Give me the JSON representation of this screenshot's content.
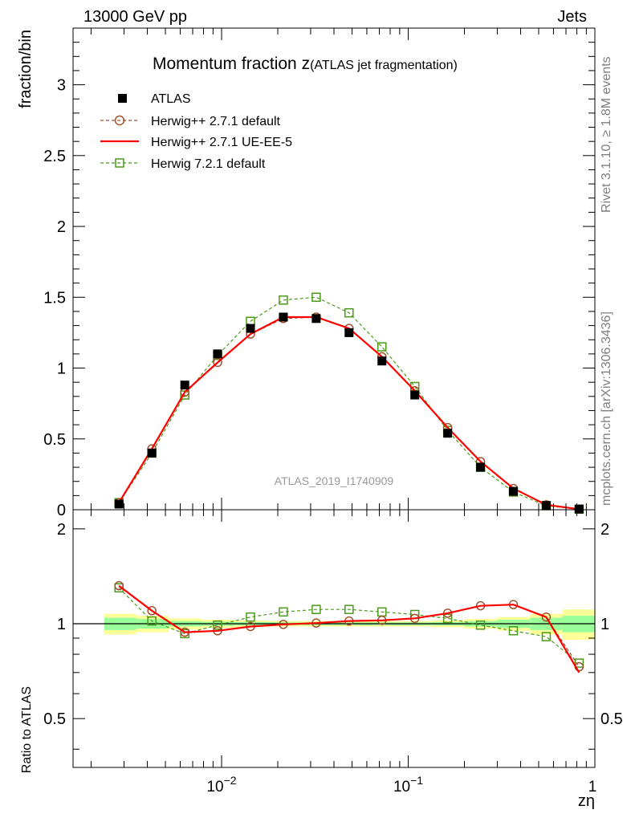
{
  "header": {
    "left": "13000 GeV pp",
    "right": "Jets"
  },
  "side_labels": {
    "rivet": "Rivet 3.1.10, ≥ 1.8M events",
    "mcplots": "mcplots.cern.ch [arXiv:1306.3436]"
  },
  "chart_data": {
    "type": "scatter",
    "title_main": "Momentum fraction ",
    "title_var": "z",
    "title_sub": "(ATLAS jet fragmentation)",
    "analysis_label": "ATLAS_2019_I1740909",
    "xlabel": "zη",
    "ylabel_main": "fraction/bin",
    "ylabel_ratio": "Ratio to ATLAS",
    "xscale": "log",
    "xlim": [
      0.0016,
      1.0
    ],
    "ylim_main": [
      0,
      3.4
    ],
    "ylim_ratio": [
      0.35,
      2.3
    ],
    "main_yticks": [
      {
        "v": 0,
        "label": "0"
      },
      {
        "v": 0.5,
        "label": "0.5"
      },
      {
        "v": 1,
        "label": "1"
      },
      {
        "v": 1.5,
        "label": "1.5"
      },
      {
        "v": 2,
        "label": "2"
      },
      {
        "v": 2.5,
        "label": "2.5"
      },
      {
        "v": 3,
        "label": "3"
      }
    ],
    "ratio_yticks": [
      {
        "v": 0.5,
        "label": "0.5"
      },
      {
        "v": 1,
        "label": "1"
      },
      {
        "v": 2,
        "label": "2"
      }
    ],
    "xticks": [
      {
        "v": 0.01,
        "base": "10",
        "exp": "−2"
      },
      {
        "v": 0.1,
        "base": "10",
        "exp": "−1"
      },
      {
        "v": 1,
        "base": "1",
        "exp": ""
      }
    ],
    "x": [
      0.00282,
      0.00423,
      0.00635,
      0.00952,
      0.01428,
      0.02142,
      0.03213,
      0.04819,
      0.07229,
      0.10843,
      0.16265,
      0.24397,
      0.36596,
      0.54894,
      0.82341
    ],
    "bin_edges": [
      0.00235,
      0.0035,
      0.0052,
      0.0078,
      0.0117,
      0.0175,
      0.0263,
      0.0395,
      0.0592,
      0.0888,
      0.133,
      0.2,
      0.3,
      0.45,
      0.67,
      1.0
    ],
    "band_inner_half": [
      0.045,
      0.035,
      0.02,
      0.015,
      0.012,
      0.01,
      0.01,
      0.01,
      0.01,
      0.01,
      0.012,
      0.02,
      0.03,
      0.045,
      0.06
    ],
    "band_outer_half": [
      0.075,
      0.06,
      0.04,
      0.03,
      0.025,
      0.02,
      0.02,
      0.02,
      0.02,
      0.02,
      0.025,
      0.035,
      0.05,
      0.075,
      0.11
    ],
    "series": [
      {
        "name": "ATLAS",
        "color": "#000000",
        "marker": "filled-square",
        "line": "none",
        "values": [
          0.04,
          0.4,
          0.88,
          1.1,
          1.28,
          1.36,
          1.35,
          1.25,
          1.05,
          0.81,
          0.54,
          0.3,
          0.13,
          0.03,
          0.005
        ]
      },
      {
        "name": "Herwig++ 2.7.1 default",
        "color": "#a0522d",
        "marker": "open-circle",
        "line": "dashed",
        "values": [
          0.05,
          0.43,
          0.83,
          1.04,
          1.24,
          1.35,
          1.36,
          1.28,
          1.08,
          0.84,
          0.58,
          0.34,
          0.15,
          0.035,
          0.004
        ],
        "ratio": [
          1.32,
          1.1,
          0.94,
          0.95,
          0.98,
          0.995,
          1.005,
          1.02,
          1.025,
          1.04,
          1.08,
          1.14,
          1.15,
          1.05,
          0.73
        ]
      },
      {
        "name": "Herwig++ 2.7.1 UE-EE-5",
        "color": "#ff0000",
        "marker": "none",
        "line": "solid",
        "values": [
          0.05,
          0.43,
          0.83,
          1.04,
          1.24,
          1.36,
          1.36,
          1.28,
          1.08,
          0.84,
          0.58,
          0.34,
          0.15,
          0.035,
          0.004
        ],
        "ratio": [
          1.32,
          1.1,
          0.94,
          0.95,
          0.98,
          0.995,
          1.005,
          1.02,
          1.025,
          1.04,
          1.08,
          1.14,
          1.15,
          1.05,
          0.7
        ]
      },
      {
        "name": "Herwig 7.2.1 default",
        "color": "#4a9a1a",
        "marker": "open-square",
        "line": "dashed",
        "values": [
          0.05,
          0.4,
          0.81,
          1.09,
          1.33,
          1.48,
          1.5,
          1.39,
          1.15,
          0.87,
          0.56,
          0.3,
          0.125,
          0.028,
          0.004
        ],
        "ratio": [
          1.3,
          1.02,
          0.93,
          0.99,
          1.05,
          1.09,
          1.11,
          1.11,
          1.09,
          1.07,
          1.04,
          0.99,
          0.95,
          0.91,
          0.75
        ]
      }
    ]
  }
}
